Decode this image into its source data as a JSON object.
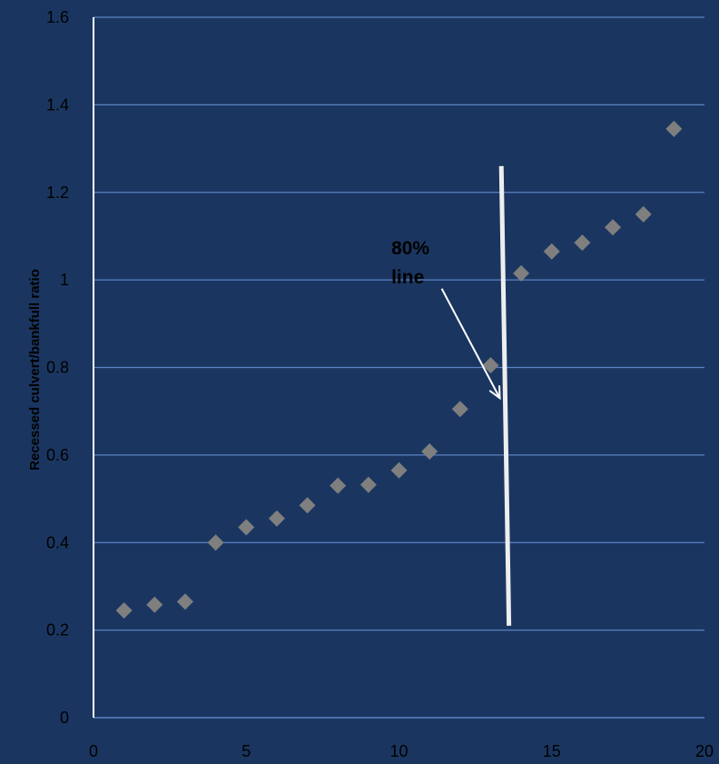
{
  "chart_data": {
    "type": "scatter",
    "title": "",
    "xlabel": "",
    "ylabel": "Recessed culvert/bankfull ratio",
    "xlim": [
      0,
      20
    ],
    "ylim": [
      0,
      1.6
    ],
    "x_ticks": [
      0,
      5,
      10,
      15,
      20
    ],
    "x_tick_labels": [
      "0",
      "5",
      "10",
      "15",
      "20"
    ],
    "y_ticks": [
      0,
      0.2,
      0.4,
      0.6,
      0.8,
      1.0,
      1.2,
      1.4,
      1.6
    ],
    "y_tick_labels": [
      "0",
      "0.2",
      "0.4",
      "0.6",
      "0.8",
      "1",
      "1.2",
      "1.4",
      "1.6"
    ],
    "grid": "horizontal",
    "legend": "none",
    "series": [
      {
        "x": [
          1,
          2,
          3,
          4,
          5,
          6,
          7,
          8,
          9,
          10,
          11,
          12,
          13,
          14,
          15,
          16,
          17,
          18,
          19
        ],
        "y": [
          0.245,
          0.258,
          0.265,
          0.4,
          0.435,
          0.455,
          0.485,
          0.53,
          0.532,
          0.565,
          0.608,
          0.705,
          0.805,
          1.015,
          1.065,
          1.085,
          1.12,
          1.15,
          1.345
        ]
      }
    ],
    "annotations": [
      {
        "text_lines": [
          "80%",
          "line"
        ],
        "label_at": [
          9.75,
          1.0
        ],
        "arrow_from": [
          11.4,
          0.98
        ],
        "arrow_to": [
          13.3,
          0.73
        ]
      }
    ],
    "threshold_line": {
      "from": [
        13.35,
        1.26
      ],
      "to": [
        13.6,
        0.21
      ]
    }
  },
  "colors": {
    "background": "#1a3660",
    "gridline": "#5b82c4",
    "axis_line": "#ffffff",
    "marker": "#7f7f7f",
    "text": "#000000",
    "threshold_line": "#eeeeee",
    "arrow": "#ffffff"
  }
}
